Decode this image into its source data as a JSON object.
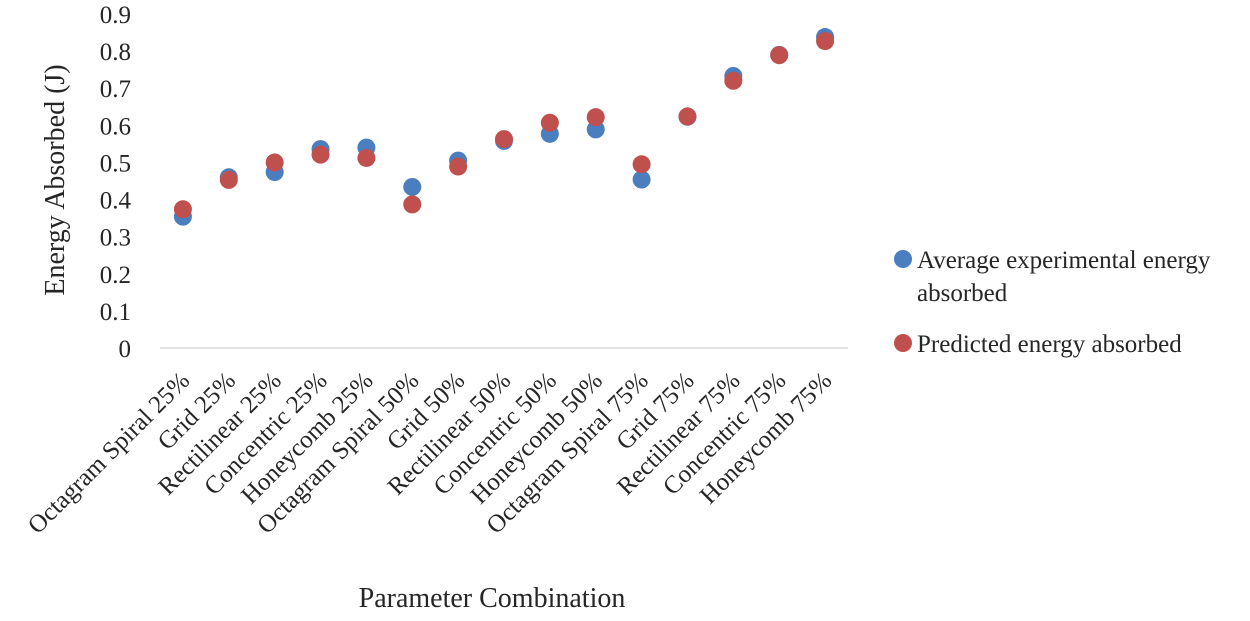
{
  "chart_data": {
    "type": "scatter",
    "title": "",
    "xlabel": "Parameter Combination",
    "ylabel": "Energy Absorbed (J)",
    "ylim": [
      0,
      0.9
    ],
    "yticks": [
      "0",
      "0.1",
      "0.2",
      "0.3",
      "0.4",
      "0.5",
      "0.6",
      "0.7",
      "0.8",
      "0.9"
    ],
    "grid": false,
    "legend_position": "right",
    "categories": [
      "Octagram Spiral 25%",
      "Grid 25%",
      "Rectilinear 25%",
      "Concentric 25%",
      "Honeycomb 25%",
      "Octagram Spiral 50%",
      "Grid 50%",
      "Rectilinear 50%",
      "Concentric 50%",
      "Honeycomb 50%",
      "Octagram Spiral 75%",
      "Grid 75%",
      "Rectilinear 75%",
      "Concentric 75%",
      "Honeycomb 75%"
    ],
    "series": [
      {
        "name": "Average experimental energy absorbed",
        "legend_lines": [
          "Average experimental energy",
          "absorbed"
        ],
        "color": "#4a7ebf",
        "values": [
          0.354,
          0.46,
          0.474,
          0.536,
          0.54,
          0.434,
          0.505,
          0.558,
          0.577,
          0.589,
          0.454,
          0.623,
          0.733,
          0.79,
          0.838
        ]
      },
      {
        "name": "Predicted energy absorbed",
        "legend_lines": [
          "Predicted energy absorbed"
        ],
        "color": "#c0504d",
        "values": [
          0.374,
          0.453,
          0.5,
          0.521,
          0.512,
          0.387,
          0.489,
          0.563,
          0.607,
          0.622,
          0.495,
          0.624,
          0.72,
          0.789,
          0.827
        ]
      }
    ]
  }
}
